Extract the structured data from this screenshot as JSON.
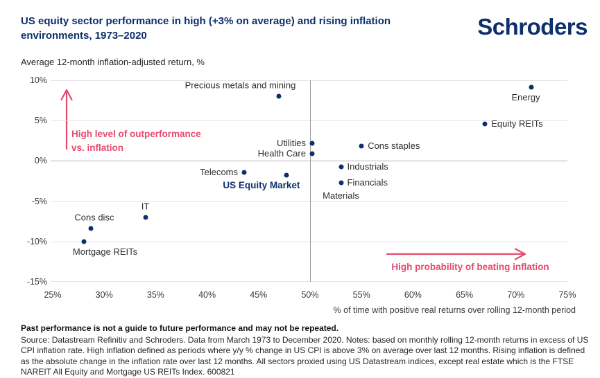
{
  "header": {
    "title": "US equity sector performance in high (+3% on average) and rising inflation environments, 1973–2020",
    "logo": "Schroders"
  },
  "chart_data": {
    "type": "scatter",
    "title": "US equity sector performance in high (+3% on average) and rising inflation environments, 1973–2020",
    "xlabel": "% of time with positive real returns over rolling 12-month period",
    "ylabel": "Average 12-month inflation-adjusted return, %",
    "xlim": [
      25,
      75
    ],
    "ylim": [
      -15,
      10
    ],
    "grid": "horizontal",
    "legend": "none",
    "divider_x": 50,
    "x_ticks": [
      {
        "value": 25,
        "label": "25%"
      },
      {
        "value": 30,
        "label": "30%"
      },
      {
        "value": 35,
        "label": "35%"
      },
      {
        "value": 40,
        "label": "40%"
      },
      {
        "value": 45,
        "label": "45%"
      },
      {
        "value": 50,
        "label": "50%"
      },
      {
        "value": 55,
        "label": "55%"
      },
      {
        "value": 60,
        "label": "60%"
      },
      {
        "value": 65,
        "label": "65%"
      },
      {
        "value": 70,
        "label": "70%"
      },
      {
        "value": 75,
        "label": "75%"
      }
    ],
    "y_ticks": [
      {
        "value": 10,
        "label": "10%"
      },
      {
        "value": 5,
        "label": "5%"
      },
      {
        "value": 0,
        "label": "0%"
      },
      {
        "value": -5,
        "label": "-5%"
      },
      {
        "value": -10,
        "label": "-10%"
      },
      {
        "value": -15,
        "label": "-15%"
      }
    ],
    "points": [
      {
        "name": "Precious metals and mining",
        "x": 47.0,
        "y": 8.0,
        "label_pos": "above",
        "dx": -56
      },
      {
        "name": "Energy",
        "x": 71.5,
        "y": 9.1,
        "label_pos": "below",
        "dx": -8
      },
      {
        "name": "Equity REITs",
        "x": 67.0,
        "y": 4.6,
        "label_pos": "right"
      },
      {
        "name": "Utilities",
        "x": 50.2,
        "y": 2.2,
        "label_pos": "left"
      },
      {
        "name": "Cons staples",
        "x": 55.0,
        "y": 1.8,
        "label_pos": "right"
      },
      {
        "name": "Health Care",
        "x": 50.2,
        "y": 0.9,
        "label_pos": "left"
      },
      {
        "name": "Industrials",
        "x": 53.0,
        "y": -0.7,
        "label_pos": "right"
      },
      {
        "name": "Telecoms",
        "x": 43.6,
        "y": -1.4,
        "label_pos": "left"
      },
      {
        "name": "US Equity Market",
        "x": 47.7,
        "y": -1.8,
        "label_pos": "below",
        "dx": -36,
        "emphasis": true
      },
      {
        "name": "Financials",
        "x": 53.0,
        "y": -2.7,
        "label_pos": "right"
      },
      {
        "name": "Materials",
        "x": 53.0,
        "y": -2.7,
        "label_pos": "below",
        "dy": 4,
        "show_dot": false
      },
      {
        "name": "IT",
        "x": 34.0,
        "y": -7.0,
        "label_pos": "above"
      },
      {
        "name": "Cons disc",
        "x": 28.7,
        "y": -8.4,
        "label_pos": "above",
        "dx": 5
      },
      {
        "name": "Mortgage REITs",
        "x": 28.0,
        "y": -10.0,
        "label_pos": "below",
        "dx": 31
      }
    ],
    "annotations": [
      {
        "text": "High level of outperformance\nvs. inflation",
        "direction": "up"
      },
      {
        "text": "High probability of beating inflation",
        "direction": "right"
      }
    ]
  },
  "colors": {
    "navy": "#0d2f6c",
    "pink": "#e8486f",
    "gridline": "#e2e2e2",
    "zero_gridline": "#b3b3b3",
    "divider_line": "#9b9b9b"
  },
  "footer": {
    "disclaimer": "Past performance is not a guide to future performance and may not be repeated.",
    "source": "Source: Datastream Refinitiv and Schroders. Data from March 1973 to December 2020. Notes: based on monthly rolling 12-month returns in excess of US CPI inflation rate. High inflation defined as periods where y/y % change in US CPI is above 3% on average over last 12 months. Rising inflation is defined as the absolute change in the inflation rate over last 12 months. All sectors proxied using US Datastream indices, except real estate which is the FTSE NAREIT All Equity and Mortgage US REITs Index. 600821"
  }
}
